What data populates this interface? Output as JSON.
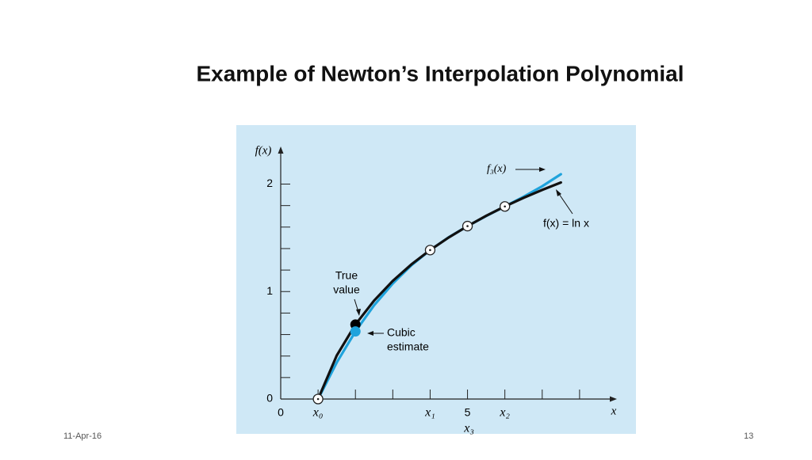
{
  "slide": {
    "title": "Example of Newton’s Interpolation Polynomial",
    "date": "11-Apr-16",
    "page": "13"
  },
  "chart_data": {
    "type": "line",
    "x_label": "x",
    "y_label": "f(x)",
    "x": [
      1,
      1.5,
      2,
      2.5,
      3,
      3.5,
      4,
      4.5,
      5,
      5.5,
      6,
      6.5,
      7,
      7.5
    ],
    "series": [
      {
        "name": "f(x) = ln x",
        "color": "#111111",
        "values": [
          0,
          0.405,
          0.693,
          0.916,
          1.099,
          1.253,
          1.386,
          1.504,
          1.609,
          1.705,
          1.792,
          1.872,
          1.946,
          2.015
        ]
      },
      {
        "name": "f₃(x)",
        "color": "#1fa3dc",
        "values": [
          0,
          0.34,
          0.629,
          0.872,
          1.075,
          1.245,
          1.386,
          1.506,
          1.609,
          1.703,
          1.792,
          1.882,
          1.98,
          2.092
        ]
      }
    ],
    "nodes": [
      {
        "x": 1,
        "y": 0
      },
      {
        "x": 4,
        "y": 1.386
      },
      {
        "x": 5,
        "y": 1.609
      },
      {
        "x": 6,
        "y": 1.792
      }
    ],
    "true_value": {
      "text": [
        "True",
        "value"
      ],
      "x": 2,
      "y": 0.693
    },
    "cubic_estimate": {
      "text": [
        "Cubic",
        "estimate"
      ],
      "x": 2,
      "y": 0.629
    },
    "x3_label": {
      "text": "x₃",
      "x": 5
    },
    "xlim": [
      0,
      9
    ],
    "ylim": [
      0,
      2.35
    ],
    "xticks": [
      0,
      {
        "value": 1,
        "label": "x₀"
      },
      {
        "value": 4,
        "label": "x₁"
      },
      5,
      {
        "value": 6,
        "label": "x₂"
      }
    ],
    "x_minor_ticks": [
      2,
      3,
      7,
      8
    ],
    "yticks": [
      0,
      1,
      2
    ],
    "y_minor_ticks": [
      0.2,
      0.4,
      0.6,
      0.8,
      1.2,
      1.4,
      1.6,
      1.8
    ]
  }
}
